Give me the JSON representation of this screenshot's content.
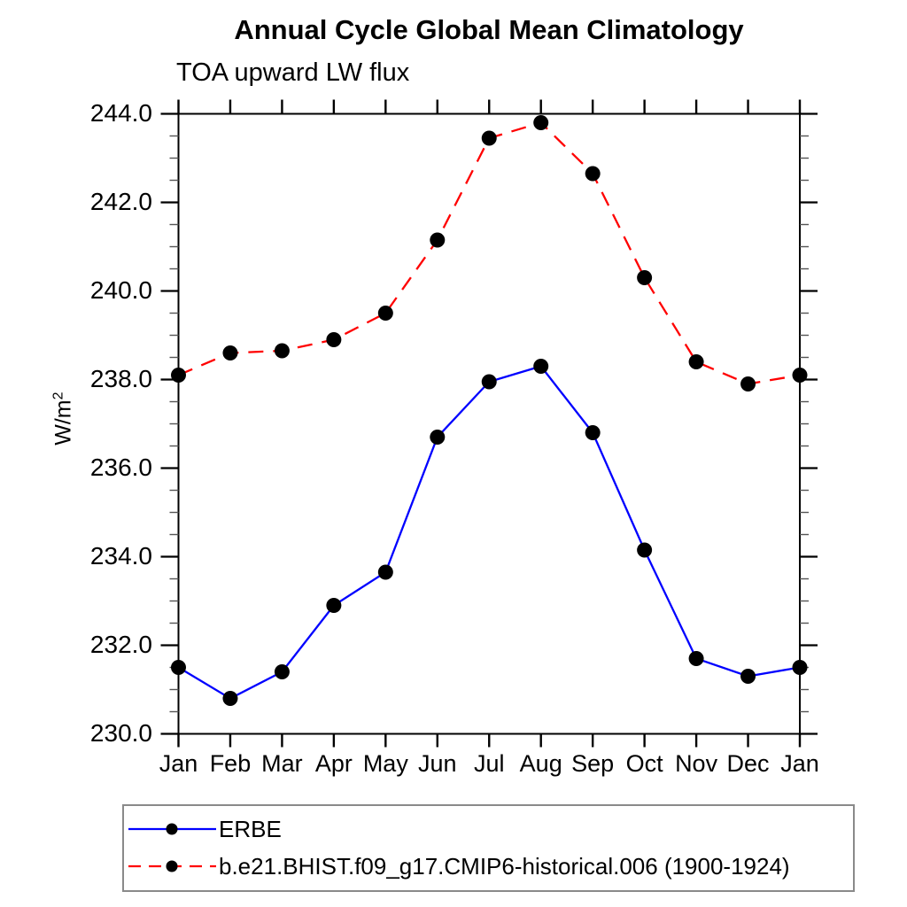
{
  "page_title": "Annual Cycle Global Mean Climatology",
  "colors": {
    "erbe_line": "#0000ff",
    "model_line": "#ff0000",
    "marker": "#000000",
    "axis": "#000000",
    "minor_tick": "#555555",
    "legend_border": "#8a8a8a",
    "background": "#ffffff"
  },
  "chart_data": {
    "type": "line",
    "title": "Annual Cycle Global Mean Climatology",
    "subtitle": "TOA upward LW flux",
    "xlabel": "",
    "ylabel": "W/m²",
    "categories": [
      "Jan",
      "Feb",
      "Mar",
      "Apr",
      "May",
      "Jun",
      "Jul",
      "Aug",
      "Sep",
      "Oct",
      "Nov",
      "Dec",
      "Jan"
    ],
    "ylim": [
      230.0,
      244.0
    ],
    "ytick_major_step": 2.0,
    "ytick_minor_step": 0.5,
    "ytick_labels": [
      "230.0",
      "232.0",
      "234.0",
      "236.0",
      "238.0",
      "240.0",
      "242.0",
      "244.0"
    ],
    "grid": false,
    "legend_position": "bottom-left-boxed",
    "series": [
      {
        "name": "ERBE",
        "color": "#0000ff",
        "line_style": "solid",
        "marker": "circle",
        "marker_color": "#000000",
        "values": [
          231.5,
          230.8,
          231.4,
          232.9,
          233.65,
          236.7,
          237.95,
          238.3,
          236.8,
          234.15,
          231.7,
          231.3,
          231.5
        ]
      },
      {
        "name": "b.e21.BHIST.f09_g17.CMIP6-historical.006 (1900-1924)",
        "color": "#ff0000",
        "line_style": "dashed",
        "marker": "circle",
        "marker_color": "#000000",
        "values": [
          238.1,
          238.6,
          238.65,
          238.9,
          239.5,
          241.15,
          243.45,
          243.8,
          242.65,
          240.3,
          238.4,
          237.9,
          238.1
        ]
      }
    ]
  }
}
